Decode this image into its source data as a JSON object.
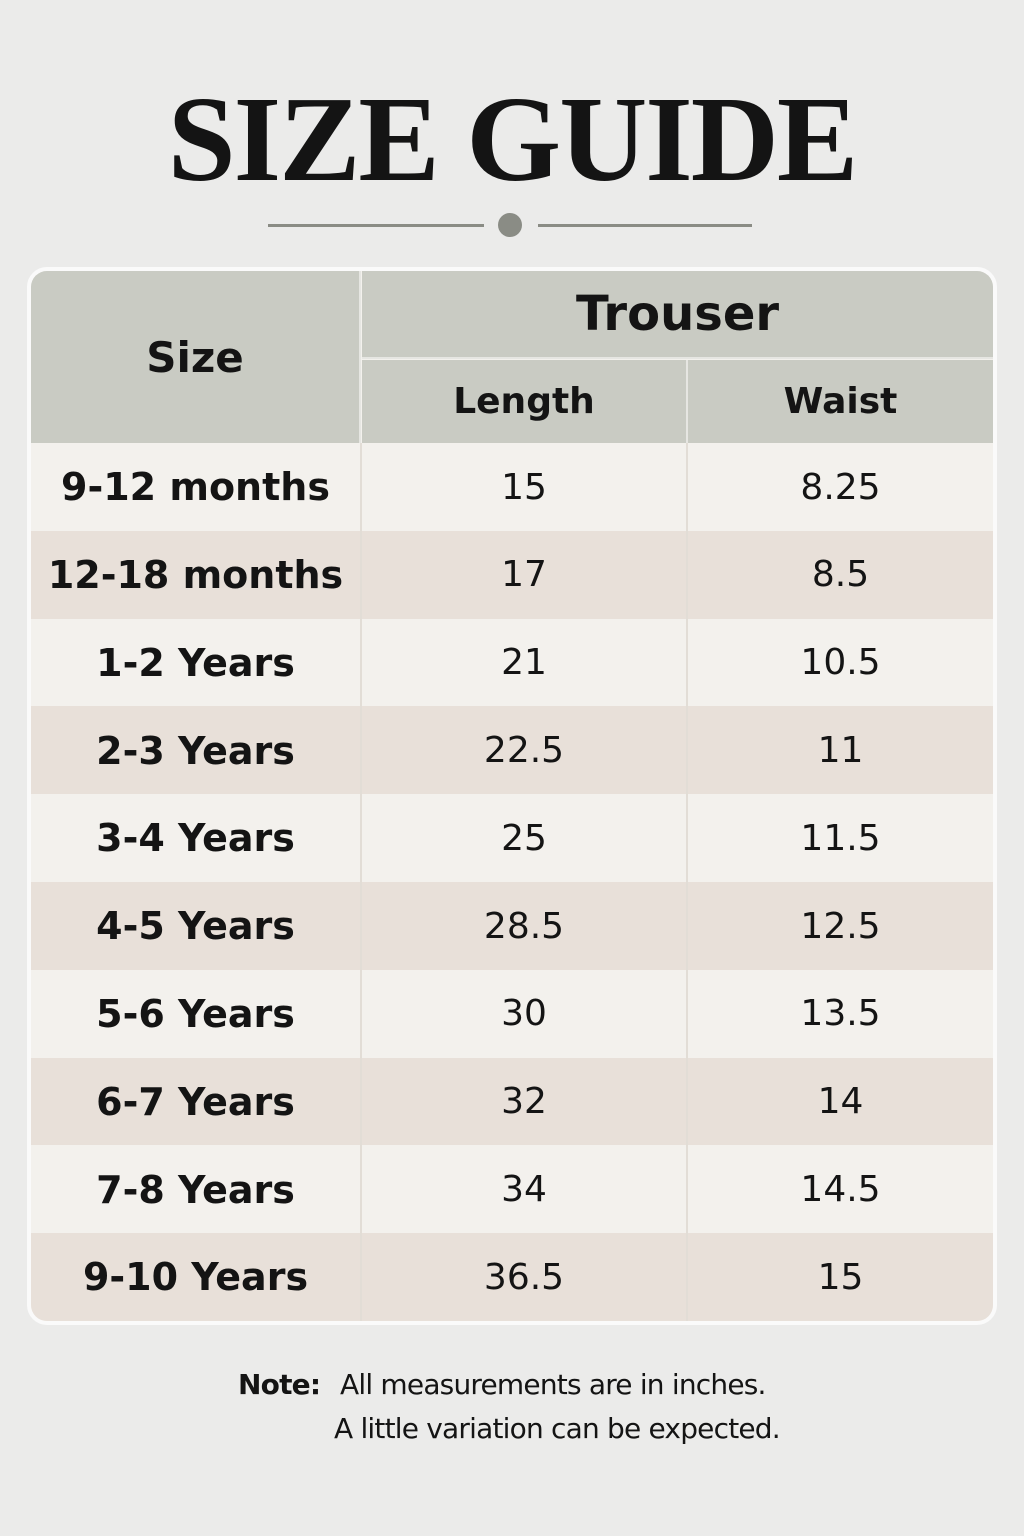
{
  "header": {
    "title": "SIZE GUIDE"
  },
  "table": {
    "size_header": "Size",
    "group_header": "Trouser",
    "columns": [
      "Length",
      "Waist"
    ],
    "rows": [
      [
        "9-12 months",
        "15",
        "8.25"
      ],
      [
        "12-18 months",
        "17",
        "8.5"
      ],
      [
        "1-2 Years",
        "21",
        "10.5"
      ],
      [
        "2-3 Years",
        "22.5",
        "11"
      ],
      [
        "3-4 Years",
        "25",
        "11.5"
      ],
      [
        "4-5 Years",
        "28.5",
        "12.5"
      ],
      [
        "5-6 Years",
        "30",
        "13.5"
      ],
      [
        "6-7 Years",
        "32",
        "14"
      ],
      [
        "7-8 Years",
        "34",
        "14.5"
      ],
      [
        "9-10 Years",
        "36.5",
        "15"
      ]
    ]
  },
  "note": {
    "label": "Note:",
    "lines": [
      "All measurements are in inches.",
      "A little variation can be expected."
    ]
  }
}
